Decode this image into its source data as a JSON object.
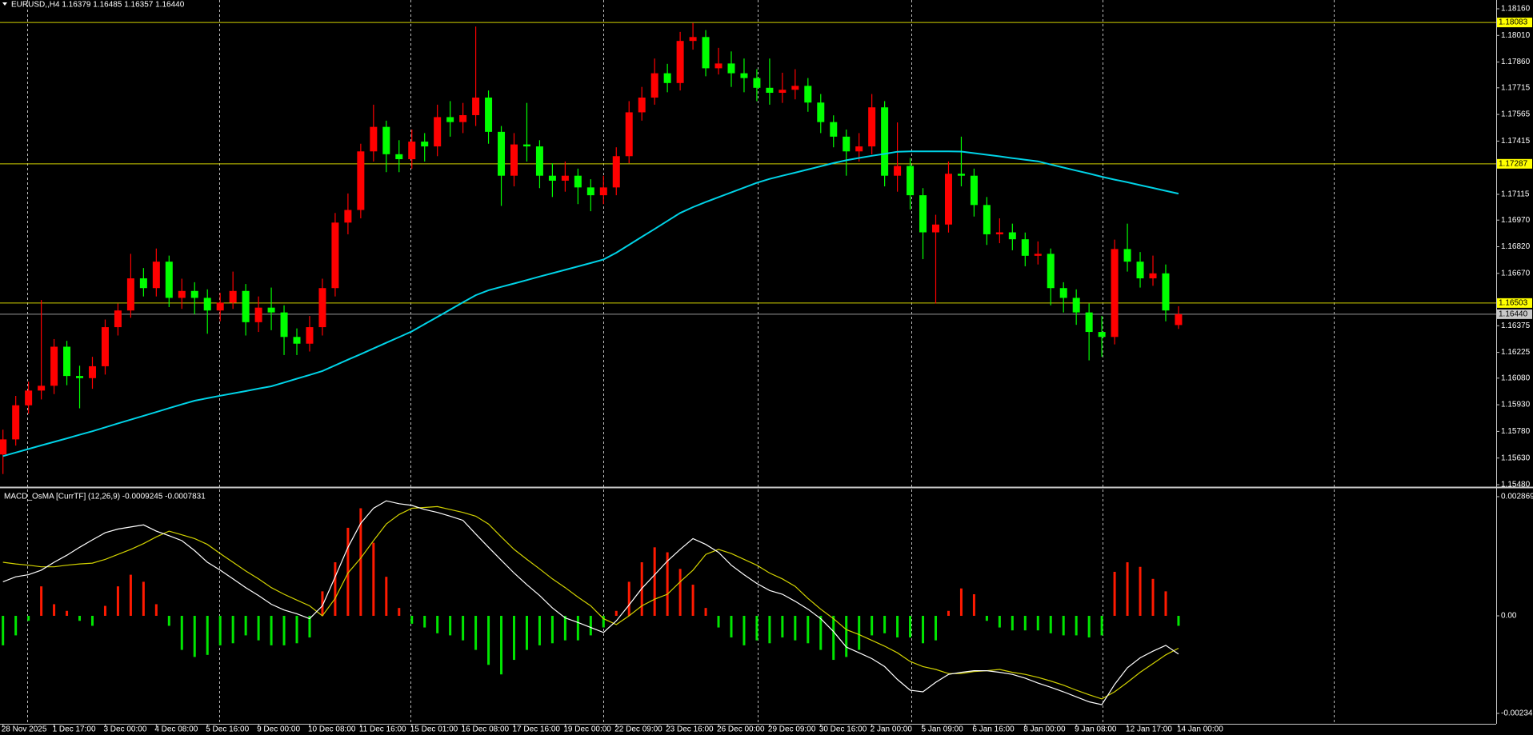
{
  "chart_data": [
    {
      "type": "candlestick",
      "title": "EURUSD,,H4  1.16379 1.16485 1.16357 1.16440",
      "categories": [
        "28 Nov 2025",
        null,
        null,
        null,
        "1 Dec 17:00",
        null,
        null,
        null,
        "3 Dec 00:00",
        null,
        null,
        null,
        "4 Dec 08:00",
        null,
        null,
        null,
        "5 Dec 16:00",
        null,
        null,
        null,
        "9 Dec 00:00",
        null,
        null,
        null,
        "10 Dec 08:00",
        null,
        null,
        null,
        "11 Dec 16:00",
        null,
        null,
        null,
        "15 Dec 01:00",
        null,
        null,
        null,
        "16 Dec 08:00",
        null,
        null,
        null,
        "17 Dec 16:00",
        null,
        null,
        null,
        "19 Dec 00:00",
        null,
        null,
        null,
        "22 Dec 09:00",
        null,
        null,
        null,
        "23 Dec 16:00",
        null,
        null,
        null,
        "26 Dec 00:00",
        null,
        null,
        null,
        "29 Dec 09:00",
        null,
        null,
        null,
        "30 Dec 16:00",
        null,
        null,
        null,
        "2 Jan 00:00",
        null,
        null,
        null,
        "5 Jan 09:00",
        null,
        null,
        null,
        "6 Jan 16:00",
        null,
        null,
        null,
        "8 Jan 00:00",
        null,
        null,
        null,
        "9 Jan 08:00",
        null,
        null,
        null,
        "12 Jan 17:00",
        null,
        null,
        null,
        "14 Jan 00:00"
      ],
      "open": [
        1.1565,
        1.15735,
        1.15927,
        1.1601,
        1.16037,
        1.16257,
        1.16092,
        1.1608,
        1.16147,
        1.16367,
        1.16461,
        1.16642,
        1.16587,
        1.16736,
        1.16532,
        1.16571,
        1.16532,
        1.16461,
        1.16505,
        1.16571,
        1.16395,
        1.16477,
        1.1645,
        1.16312,
        1.16274,
        1.16367,
        1.16587,
        1.16956,
        1.17027,
        1.17357,
        1.17495,
        1.17341,
        1.17313,
        1.17412,
        1.17385,
        1.1755,
        1.17522,
        1.17561,
        1.1766,
        1.17467,
        1.1722,
        1.17396,
        1.17385,
        1.1722,
        1.17192,
        1.1722,
        1.17154,
        1.1711,
        1.17154,
        1.1733,
        1.17577,
        1.1766,
        1.17797,
        1.17742,
        1.17979,
        1.18001,
        1.17825,
        1.17852,
        1.17797,
        1.1777,
        1.17715,
        1.17687,
        1.17704,
        1.17726,
        1.17632,
        1.17522,
        1.1744,
        1.17357,
        1.17385,
        1.17605,
        1.1722,
        1.17275,
        1.1711,
        1.16901,
        1.16945,
        1.17231,
        1.1722,
        1.17055,
        1.1689,
        1.16901,
        1.16862,
        1.16769,
        1.1678,
        1.16587,
        1.16532,
        1.1645,
        1.1634,
        1.16312,
        1.16807,
        1.16736,
        1.16642,
        1.1667,
        1.16379
      ],
      "high": [
        1.1579,
        1.1598,
        1.1606,
        1.1652,
        1.163,
        1.1629,
        1.1615,
        1.162,
        1.1641,
        1.165,
        1.1678,
        1.167,
        1.1681,
        1.1677,
        1.1664,
        1.1662,
        1.1658,
        1.1656,
        1.1668,
        1.1661,
        1.1654,
        1.1659,
        1.1649,
        1.1636,
        1.1643,
        1.1664,
        1.1701,
        1.1712,
        1.174,
        1.1762,
        1.1753,
        1.1742,
        1.1748,
        1.1746,
        1.1762,
        1.1764,
        1.1763,
        1.1806,
        1.177,
        1.175,
        1.1746,
        1.1763,
        1.1742,
        1.1729,
        1.173,
        1.1726,
        1.172,
        1.1722,
        1.1738,
        1.1764,
        1.1772,
        1.1788,
        1.1785,
        1.1803,
        1.1808,
        1.1804,
        1.1794,
        1.1792,
        1.1788,
        1.1782,
        1.1788,
        1.178,
        1.1782,
        1.1777,
        1.1768,
        1.1756,
        1.1748,
        1.1746,
        1.1768,
        1.1764,
        1.1752,
        1.1732,
        1.1715,
        1.17,
        1.173,
        1.1744,
        1.1726,
        1.171,
        1.1698,
        1.1695,
        1.169,
        1.1685,
        1.1681,
        1.1662,
        1.1658,
        1.165,
        1.1643,
        1.1686,
        1.1695,
        1.1679,
        1.1677,
        1.1672,
        1.16485
      ],
      "low": [
        1.1554,
        1.157,
        1.1588,
        1.1596,
        1.1599,
        1.1604,
        1.1591,
        1.1602,
        1.161,
        1.1632,
        1.1642,
        1.1654,
        1.1654,
        1.1648,
        1.1647,
        1.1644,
        1.1633,
        1.164,
        1.1647,
        1.1632,
        1.1634,
        1.1635,
        1.1621,
        1.1621,
        1.1623,
        1.1632,
        1.1654,
        1.1689,
        1.1698,
        1.173,
        1.1724,
        1.1724,
        1.1726,
        1.173,
        1.1733,
        1.1744,
        1.1746,
        1.175,
        1.174,
        1.1705,
        1.1716,
        1.173,
        1.1715,
        1.171,
        1.1713,
        1.1706,
        1.1702,
        1.1706,
        1.1711,
        1.1729,
        1.1753,
        1.1762,
        1.1769,
        1.177,
        1.1793,
        1.1778,
        1.1779,
        1.1772,
        1.1769,
        1.1764,
        1.1762,
        1.1763,
        1.1765,
        1.1758,
        1.1746,
        1.1738,
        1.1722,
        1.173,
        1.1734,
        1.1716,
        1.1713,
        1.1703,
        1.1675,
        1.165,
        1.169,
        1.1716,
        1.1699,
        1.1683,
        1.1684,
        1.168,
        1.1671,
        1.1672,
        1.1649,
        1.1645,
        1.1638,
        1.1618,
        1.162,
        1.1627,
        1.1668,
        1.1659,
        1.166,
        1.164,
        1.16357
      ],
      "close": [
        1.15735,
        1.15927,
        1.1601,
        1.16037,
        1.16257,
        1.16092,
        1.1608,
        1.16147,
        1.16367,
        1.16461,
        1.16642,
        1.16587,
        1.16736,
        1.16532,
        1.16571,
        1.16532,
        1.16461,
        1.16505,
        1.16571,
        1.16395,
        1.16477,
        1.1645,
        1.16312,
        1.16274,
        1.16367,
        1.16587,
        1.16956,
        1.17027,
        1.17357,
        1.17495,
        1.17341,
        1.17313,
        1.17412,
        1.17385,
        1.1755,
        1.17522,
        1.17561,
        1.1766,
        1.17467,
        1.1722,
        1.17396,
        1.17385,
        1.1722,
        1.17192,
        1.1722,
        1.17154,
        1.1711,
        1.17154,
        1.1733,
        1.17577,
        1.1766,
        1.17797,
        1.17742,
        1.17979,
        1.18001,
        1.17825,
        1.17852,
        1.17797,
        1.1777,
        1.17715,
        1.17687,
        1.17704,
        1.17726,
        1.17632,
        1.17522,
        1.1744,
        1.17357,
        1.17385,
        1.17605,
        1.1722,
        1.17275,
        1.1711,
        1.16901,
        1.16945,
        1.17231,
        1.1722,
        1.17055,
        1.1689,
        1.16901,
        1.16862,
        1.16769,
        1.1678,
        1.16587,
        1.16532,
        1.1645,
        1.1634,
        1.16312,
        1.16807,
        1.16736,
        1.16642,
        1.1667,
        1.16461,
        1.1644
      ],
      "up_color": "#ff0000",
      "down_color": "#00ff00",
      "ma": {
        "color": "#00d2e6",
        "values": [
          1.15641,
          1.15661,
          1.15681,
          1.15701,
          1.15721,
          1.15741,
          1.15761,
          1.15781,
          1.15803,
          1.15825,
          1.15846,
          1.15868,
          1.15889,
          1.15911,
          1.15932,
          1.15953,
          1.15967,
          1.15981,
          1.15994,
          1.16007,
          1.16021,
          1.16034,
          1.16055,
          1.16077,
          1.16098,
          1.1612,
          1.16152,
          1.16184,
          1.16215,
          1.16247,
          1.16279,
          1.16311,
          1.16343,
          1.16384,
          1.16425,
          1.16466,
          1.16507,
          1.16547,
          1.16575,
          1.16594,
          1.16613,
          1.16632,
          1.16652,
          1.16671,
          1.1669,
          1.16709,
          1.16728,
          1.16748,
          1.16786,
          1.16831,
          1.16876,
          1.1692,
          1.16965,
          1.1701,
          1.17043,
          1.17072,
          1.17099,
          1.17126,
          1.17153,
          1.1718,
          1.17202,
          1.1722,
          1.17237,
          1.17255,
          1.17273,
          1.17291,
          1.17307,
          1.1732,
          1.17332,
          1.17343,
          1.17355,
          1.17357,
          1.17357,
          1.17357,
          1.17357,
          1.17356,
          1.17347,
          1.17338,
          1.17329,
          1.17319,
          1.1731,
          1.17301,
          1.17283,
          1.17266,
          1.17249,
          1.17232,
          1.17214,
          1.17198,
          1.17183,
          1.17167,
          1.17151,
          1.17135,
          1.17119
        ]
      },
      "levels": [
        1.18083,
        1.17287,
        1.16503
      ],
      "level_color": "#d2d200",
      "bid": {
        "value": 1.1644,
        "label": "1.16440"
      },
      "bid_color": "#9a9a9a",
      "ylim": [
        1.1548,
        1.1816
      ],
      "yticks": [
        {
          "value": 1.1816,
          "label": "1.18160"
        },
        {
          "value": 1.1801,
          "label": "1.18010"
        },
        {
          "value": 1.1786,
          "label": "1.17860"
        },
        1.17715,
        1.17565,
        1.17415,
        1.17115,
        {
          "value": 1.1697,
          "label": "1.16970"
        },
        {
          "value": 1.1682,
          "label": "1.16820"
        },
        {
          "value": 1.1667,
          "label": "1.16670"
        },
        1.16375,
        1.16225,
        {
          "value": 1.1608,
          "label": "1.16080"
        },
        {
          "value": 1.1593,
          "label": "1.15930"
        },
        {
          "value": 1.1578,
          "label": "1.15780"
        },
        {
          "value": 1.1563,
          "label": "1.15630"
        },
        {
          "value": 1.1548,
          "label": "1.15480"
        }
      ]
    },
    {
      "type": "macd",
      "title": "MACD_OsMA [CurrTF] (12,26,9) -0.0009245 -0.0007831",
      "histogram": [
        -0.00071,
        -0.00047,
        -0.00012,
        0.00071,
        0.00028,
        0.00012,
        -0.00012,
        -0.00024,
        0.00024,
        0.00071,
        0.00099,
        0.00082,
        0.00028,
        -0.00024,
        -0.00082,
        -0.00099,
        -0.00094,
        -0.00071,
        -0.00066,
        -0.00047,
        -0.00059,
        -0.00071,
        -0.00071,
        -0.00066,
        -0.00052,
        0.00059,
        0.00129,
        0.00212,
        0.00259,
        0.00176,
        0.00094,
        0.00019,
        -0.00019,
        -0.00028,
        -0.00042,
        -0.00047,
        -0.00059,
        -0.00082,
        -0.00118,
        -0.00141,
        -0.00106,
        -0.00082,
        -0.00071,
        -0.00066,
        -0.00059,
        -0.00059,
        -0.00047,
        -0.00028,
        0.00012,
        0.00082,
        0.00129,
        0.00165,
        0.00153,
        0.00113,
        0.00075,
        0.00019,
        -0.00028,
        -0.00052,
        -0.00071,
        -0.00059,
        -0.00066,
        -0.00052,
        -0.00059,
        -0.00066,
        -0.00082,
        -0.00106,
        -0.00099,
        -0.00082,
        -0.00047,
        -0.00042,
        -0.00052,
        -0.00052,
        -0.00066,
        -0.00059,
        0.00012,
        0.00066,
        0.00052,
        -0.00012,
        -0.00028,
        -0.00035,
        -0.00035,
        -0.00035,
        -0.00042,
        -0.00047,
        -0.00047,
        -0.00052,
        -0.00047,
        0.00106,
        0.00129,
        0.00118,
        0.00089,
        0.00059,
        -0.00024
      ],
      "pos_color": "#ff1a00",
      "neg_color": "#00e600",
      "macd": {
        "color": "#ffffff",
        "values": [
          0.00082,
          0.00094,
          0.00099,
          0.0011,
          0.00129,
          0.00146,
          0.00165,
          0.00183,
          0.002,
          0.00209,
          0.00214,
          0.00219,
          0.00204,
          0.00193,
          0.00181,
          0.00157,
          0.00129,
          0.0011,
          0.00089,
          0.00068,
          0.00049,
          0.00028,
          0.00014,
          5e-05,
          -7e-05,
          0.00024,
          0.00094,
          0.00165,
          0.00223,
          0.00259,
          0.00277,
          0.0027,
          0.00266,
          0.00256,
          0.00249,
          0.0024,
          0.0023,
          0.00197,
          0.00165,
          0.00134,
          0.00103,
          0.00075,
          0.00049,
          0.00019,
          -5e-05,
          -0.00016,
          -0.00028,
          -0.0004,
          -0.00012,
          0.00026,
          0.00066,
          0.00099,
          0.00132,
          0.0016,
          0.00186,
          0.00172,
          0.00153,
          0.00122,
          0.00099,
          0.00078,
          0.00061,
          0.00052,
          0.00035,
          0.00016,
          -7e-05,
          -0.00038,
          -0.00075,
          -0.00089,
          -0.00103,
          -0.00122,
          -0.00153,
          -0.00179,
          -0.00183,
          -0.0016,
          -0.00141,
          -0.00136,
          -0.00132,
          -0.00132,
          -0.00136,
          -0.00141,
          -0.0015,
          -0.00162,
          -0.00172,
          -0.00183,
          -0.00195,
          -0.00207,
          -0.00214,
          -0.00165,
          -0.00125,
          -0.00101,
          -0.00085,
          -0.00071,
          -0.00092
        ]
      },
      "signal": {
        "color": "#d2d200",
        "values": [
          0.00129,
          0.00125,
          0.00122,
          0.00118,
          0.00118,
          0.00122,
          0.00125,
          0.00127,
          0.00136,
          0.00148,
          0.0016,
          0.00174,
          0.0019,
          0.00204,
          0.00195,
          0.00186,
          0.00172,
          0.0015,
          0.00129,
          0.00108,
          0.00089,
          0.00068,
          0.00052,
          0.00038,
          0.00024,
          0,
          0.00042,
          0.00103,
          0.00139,
          0.00181,
          0.00221,
          0.00244,
          0.00259,
          0.00261,
          0.00263,
          0.00256,
          0.00249,
          0.0024,
          0.00221,
          0.0019,
          0.0016,
          0.00136,
          0.00113,
          0.00089,
          0.00068,
          0.00045,
          0.00024,
          -7e-05,
          -0.00021,
          0,
          0.00024,
          0.0004,
          0.00052,
          0.00082,
          0.0011,
          0.00148,
          0.0016,
          0.0015,
          0.00136,
          0.00122,
          0.00103,
          0.00089,
          0.00071,
          0.00042,
          0.00016,
          -7e-05,
          -0.00033,
          -0.00045,
          -0.00059,
          -0.00073,
          -0.00089,
          -0.0011,
          -0.00122,
          -0.00129,
          -0.00139,
          -0.00139,
          -0.00134,
          -0.00132,
          -0.00129,
          -0.00136,
          -0.00141,
          -0.00148,
          -0.00157,
          -0.00167,
          -0.00179,
          -0.0019,
          -0.002,
          -0.00183,
          -0.0016,
          -0.00136,
          -0.00115,
          -0.00094,
          -0.00078
        ]
      },
      "ylim": [
        -0.002349,
        0.0028694
      ],
      "yticks": [
        0.0028694,
        {
          "value": 0,
          "label": "0.00"
        },
        -0.002349
      ]
    }
  ]
}
